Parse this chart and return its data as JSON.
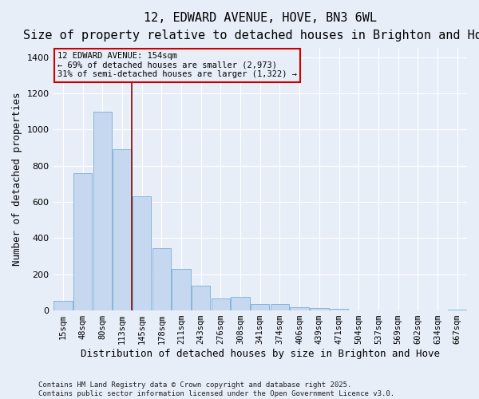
{
  "title": "12, EDWARD AVENUE, HOVE, BN3 6WL",
  "subtitle": "Size of property relative to detached houses in Brighton and Hove",
  "xlabel": "Distribution of detached houses by size in Brighton and Hove",
  "ylabel": "Number of detached properties",
  "categories": [
    "15sqm",
    "48sqm",
    "80sqm",
    "113sqm",
    "145sqm",
    "178sqm",
    "211sqm",
    "243sqm",
    "276sqm",
    "308sqm",
    "341sqm",
    "374sqm",
    "406sqm",
    "439sqm",
    "471sqm",
    "504sqm",
    "537sqm",
    "569sqm",
    "602sqm",
    "634sqm",
    "667sqm"
  ],
  "values": [
    55,
    760,
    1100,
    890,
    630,
    345,
    230,
    135,
    65,
    75,
    35,
    35,
    20,
    12,
    8,
    2,
    1,
    1,
    1,
    1,
    5
  ],
  "bar_color": "#c5d8f0",
  "bar_edgecolor": "#7aaed6",
  "vline_x_idx": 3.5,
  "vline_color": "#8b0000",
  "annotation_text": "12 EDWARD AVENUE: 154sqm\n← 69% of detached houses are smaller (2,973)\n31% of semi-detached houses are larger (1,322) →",
  "box_color": "#cc0000",
  "footer": "Contains HM Land Registry data © Crown copyright and database right 2025.\nContains public sector information licensed under the Open Government Licence v3.0.",
  "ylim": [
    0,
    1450
  ],
  "yticks": [
    0,
    200,
    400,
    600,
    800,
    1000,
    1200,
    1400
  ],
  "background_color": "#e8eef8",
  "grid_color": "#ffffff",
  "title_fontsize": 11,
  "subtitle_fontsize": 9.5,
  "axis_label_fontsize": 9,
  "tick_fontsize": 7.5,
  "footer_fontsize": 6.5
}
